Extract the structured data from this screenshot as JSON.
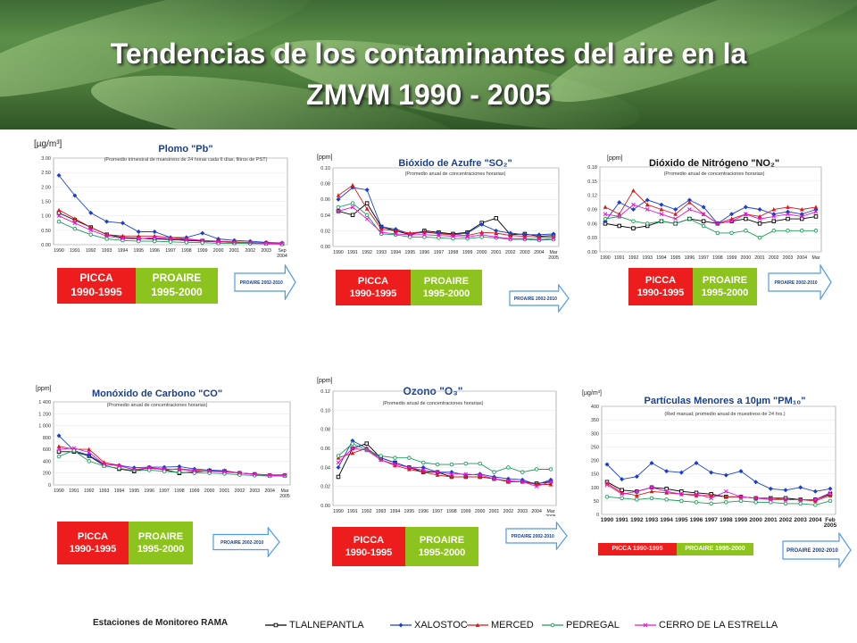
{
  "title": {
    "line1": "Tendencias de los contaminantes del aire en la",
    "line2": "ZMVM  1990 - 2005"
  },
  "colors": {
    "TLALNEPANTLA": "#000000",
    "XALOSTOC": "#1a3fcf",
    "MERCED": "#d8181a",
    "PEDREGAL": "#1c9b5a",
    "CERRO DE LA ESTRELLA": "#e317d6",
    "PICCA": "#ee1d1d",
    "PROAIRE": "#8dc31f",
    "ARROW": "#4f9be8"
  },
  "legend": {
    "title": "Estaciones de Monitoreo RAMA",
    "items": [
      "TLALNEPANTLA",
      "XALOSTOC",
      "MERCED",
      "PEDREGAL",
      "CERRO DE LA ESTRELLA"
    ]
  },
  "labels": {
    "picca": "PICCA",
    "picca_years": "1990-1995",
    "proaire": "PROAIRE",
    "proaire_years": "1995-2000",
    "arrow": "PROAIRE 2002-2010",
    "picca_short": "PICCA 1990-1995",
    "proaire_short": "PROAIRE 1995-2000"
  },
  "chart_data": [
    {
      "id": "pb",
      "type": "line",
      "title": "Plomo \"Pb\"",
      "subtitle": "(Promedio trimestral de muestreos de 24 horas cada 6 días, filtros de PST)",
      "unit": "[µg/m³]",
      "ylim": [
        0,
        3.0
      ],
      "yticks": [
        "0.00",
        "0.50",
        "1.00",
        "1.50",
        "2.00",
        "2.50",
        "3.00"
      ],
      "x": [
        "1990",
        "1991",
        "1992",
        "1993",
        "1994",
        "1995",
        "1996",
        "1997",
        "1998",
        "1999",
        "2000",
        "2001",
        "2002",
        "2003",
        "Sep 2004"
      ],
      "xticks": [
        "1990",
        "1991",
        "1992",
        "1993",
        "1994",
        "1995",
        "1996",
        "1997",
        "1998",
        "1999",
        "2000",
        "2001",
        "2002",
        "2003",
        "Sep 2004"
      ],
      "series": [
        {
          "name": "TLALNEPANTLA",
          "values": [
            1.1,
            0.85,
            0.6,
            0.35,
            0.25,
            0.22,
            0.2,
            0.18,
            0.15,
            0.12,
            0.1,
            0.08,
            0.07,
            0.05,
            0.03
          ]
        },
        {
          "name": "XALOSTOC",
          "values": [
            2.4,
            1.7,
            1.1,
            0.8,
            0.75,
            0.45,
            0.45,
            0.25,
            0.25,
            0.4,
            0.2,
            0.15,
            0.12,
            0.08,
            0.06
          ]
        },
        {
          "name": "MERCED",
          "values": [
            1.2,
            0.9,
            0.6,
            0.35,
            0.3,
            0.3,
            0.3,
            0.25,
            0.2,
            0.15,
            0.12,
            0.1,
            0.08,
            0.06,
            0.05
          ]
        },
        {
          "name": "PEDREGAL",
          "values": [
            0.8,
            0.55,
            0.35,
            0.2,
            0.15,
            0.12,
            0.12,
            0.1,
            0.08,
            0.07,
            0.05,
            0.05,
            0.04,
            0.03,
            0.02
          ]
        },
        {
          "name": "CERRO DE LA ESTRELLA",
          "values": [
            1.0,
            0.75,
            0.5,
            0.3,
            0.22,
            0.2,
            0.25,
            0.2,
            0.18,
            0.15,
            0.1,
            0.08,
            0.07,
            0.05,
            0.04
          ]
        }
      ]
    },
    {
      "id": "so2",
      "type": "line",
      "title": "Bióxido de Azufre \"SO₂\"",
      "subtitle": "(Promedio anual de concentraciones horarias)",
      "unit": "[ppm]",
      "ylim": [
        0,
        0.1
      ],
      "yticks": [
        "0.00",
        "0.02",
        "0.04",
        "0.06",
        "0.08",
        "0.10"
      ],
      "x": [
        "1990",
        "1991",
        "1992",
        "1993",
        "1994",
        "1995",
        "1996",
        "1997",
        "1998",
        "1999",
        "2000",
        "2001",
        "2002",
        "2003",
        "2004",
        "Mar 2005"
      ],
      "xticks": [
        "1990",
        "1991",
        "1992",
        "1993",
        "1994",
        "1995",
        "1996",
        "1997",
        "1998",
        "1999",
        "2000",
        "2001",
        "2002",
        "2003",
        "2004",
        "Mar 2005"
      ],
      "series": [
        {
          "name": "TLALNEPANTLA",
          "values": [
            0.045,
            0.04,
            0.055,
            0.025,
            0.02,
            0.015,
            0.02,
            0.018,
            0.016,
            0.018,
            0.03,
            0.036,
            0.015,
            0.016,
            0.013,
            0.014
          ]
        },
        {
          "name": "XALOSTOC",
          "values": [
            0.06,
            0.075,
            0.072,
            0.025,
            0.022,
            0.016,
            0.018,
            0.017,
            0.015,
            0.017,
            0.028,
            0.02,
            0.017,
            0.015,
            0.015,
            0.016
          ]
        },
        {
          "name": "MERCED",
          "values": [
            0.065,
            0.078,
            0.048,
            0.022,
            0.02,
            0.017,
            0.019,
            0.016,
            0.015,
            0.014,
            0.018,
            0.017,
            0.014,
            0.013,
            0.012,
            0.012
          ]
        },
        {
          "name": "PEDREGAL",
          "values": [
            0.05,
            0.055,
            0.04,
            0.016,
            0.015,
            0.012,
            0.012,
            0.011,
            0.01,
            0.01,
            0.012,
            0.011,
            0.009,
            0.009,
            0.008,
            0.009
          ]
        },
        {
          "name": "CERRO DE LA ESTRELLA",
          "values": [
            0.045,
            0.05,
            0.035,
            0.018,
            0.016,
            0.015,
            0.015,
            0.014,
            0.013,
            0.012,
            0.015,
            0.012,
            0.01,
            0.01,
            0.009,
            0.01
          ]
        }
      ]
    },
    {
      "id": "no2",
      "type": "line",
      "title": "Dióxido de Nitrógeno \"NO₂\"",
      "subtitle": "(Promedio anual de concentraciones horarias)",
      "unit": "[ppm]",
      "ylim": [
        0,
        0.18
      ],
      "yticks": [
        "0.00",
        "0.03",
        "0.06",
        "0.09",
        "0.12",
        "0.15",
        "0.18"
      ],
      "x": [
        "1990",
        "1991",
        "1992",
        "1993",
        "1994",
        "1995",
        "1996",
        "1997",
        "1998",
        "1999",
        "2000",
        "2001",
        "2002",
        "2003",
        "2004",
        "Mar"
      ],
      "xticks": [
        "1990",
        "1991",
        "1992",
        "1993",
        "1994",
        "1995",
        "1996",
        "1997",
        "1998",
        "1999",
        "2000",
        "2001",
        "2002",
        "2003",
        "2004",
        "Mar"
      ],
      "series": [
        {
          "name": "TLALNEPANTLA",
          "values": [
            0.06,
            0.055,
            0.05,
            0.055,
            0.065,
            0.06,
            0.07,
            0.065,
            0.06,
            0.065,
            0.07,
            0.06,
            0.065,
            0.07,
            0.07,
            0.075
          ]
        },
        {
          "name": "XALOSTOC",
          "values": [
            0.065,
            0.105,
            0.09,
            0.11,
            0.1,
            0.09,
            0.11,
            0.095,
            0.06,
            0.08,
            0.095,
            0.09,
            0.08,
            0.085,
            0.08,
            0.09
          ]
        },
        {
          "name": "MERCED",
          "values": [
            0.095,
            0.08,
            0.13,
            0.1,
            0.09,
            0.08,
            0.105,
            0.08,
            0.06,
            0.07,
            0.08,
            0.075,
            0.09,
            0.095,
            0.09,
            0.095
          ]
        },
        {
          "name": "PEDREGAL",
          "values": [
            0.07,
            0.075,
            0.065,
            0.06,
            0.065,
            0.06,
            0.07,
            0.055,
            0.04,
            0.04,
            0.045,
            0.03,
            0.045,
            0.045,
            0.045,
            0.045
          ]
        },
        {
          "name": "CERRO DE LA ESTRELLA",
          "values": [
            0.08,
            0.075,
            0.1,
            0.09,
            0.08,
            0.07,
            0.09,
            0.08,
            0.06,
            0.065,
            0.08,
            0.07,
            0.075,
            0.08,
            0.075,
            0.085
          ]
        }
      ]
    },
    {
      "id": "co",
      "type": "line",
      "title": "Monóxido de Carbono \"CO\"",
      "subtitle": "(Promedio anual de concentraciones horarias)",
      "unit": "[ppm]",
      "ylim": [
        0,
        1400
      ],
      "yticks": [
        "0",
        "200",
        "400",
        "600",
        "800",
        "1 000",
        "1 200",
        "1 400"
      ],
      "x": [
        "1990",
        "1991",
        "1992",
        "1993",
        "1994",
        "1995",
        "1996",
        "1997",
        "1998",
        "1999",
        "2000",
        "2001",
        "2002",
        "2003",
        "2004",
        "Mar 2005"
      ],
      "xticks": [
        "1990",
        "1991",
        "1992",
        "1993",
        "1994",
        "1995",
        "1996",
        "1997",
        "1998",
        "1999",
        "2000",
        "2001",
        "2002",
        "2003",
        "2004",
        "Mar 2005"
      ],
      "series": [
        {
          "name": "TLALNEPANTLA",
          "values": [
            560,
            560,
            490,
            330,
            270,
            230,
            290,
            260,
            200,
            220,
            240,
            230,
            200,
            180,
            160,
            160
          ]
        },
        {
          "name": "XALOSTOC",
          "values": [
            830,
            580,
            500,
            350,
            330,
            290,
            300,
            300,
            310,
            270,
            250,
            240,
            200,
            180,
            160,
            160
          ]
        },
        {
          "name": "MERCED",
          "values": [
            650,
            600,
            600,
            380,
            330,
            250,
            280,
            260,
            270,
            250,
            230,
            230,
            200,
            180,
            170,
            170
          ]
        },
        {
          "name": "PEDREGAL",
          "values": [
            480,
            580,
            400,
            320,
            280,
            240,
            250,
            230,
            210,
            200,
            200,
            190,
            170,
            160,
            150,
            150
          ]
        },
        {
          "name": "CERRO DE LA ESTRELLA",
          "values": [
            600,
            620,
            550,
            350,
            320,
            260,
            290,
            270,
            260,
            240,
            230,
            220,
            200,
            180,
            160,
            160
          ]
        }
      ]
    },
    {
      "id": "o3",
      "type": "line",
      "title": "Ozono \"O₃\"",
      "subtitle": "(Promedio anual de concentraciones horarias)",
      "unit": "[ppm]",
      "ylim": [
        0,
        0.12
      ],
      "yticks": [
        "0.00",
        "0.02",
        "0.04",
        "0.06",
        "0.08",
        "0.10",
        "0.12"
      ],
      "x": [
        "1990",
        "1991",
        "1992",
        "1993",
        "1994",
        "1995",
        "1996",
        "1997",
        "1998",
        "1999",
        "2000",
        "2001",
        "2002",
        "2003",
        "2004",
        "Mar 2005"
      ],
      "xticks": [
        "1990",
        "1991",
        "1992",
        "1993",
        "1994",
        "1995",
        "1996",
        "1997",
        "1998",
        "1999",
        "2000",
        "2001",
        "2002",
        "2003",
        "2004",
        "Mar 2005"
      ],
      "series": [
        {
          "name": "TLALNEPANTLA",
          "values": [
            0.03,
            0.06,
            0.065,
            0.05,
            0.045,
            0.04,
            0.035,
            0.035,
            0.03,
            0.03,
            0.03,
            0.028,
            0.025,
            0.025,
            0.023,
            0.025
          ]
        },
        {
          "name": "XALOSTOC",
          "values": [
            0.04,
            0.068,
            0.06,
            0.05,
            0.045,
            0.04,
            0.04,
            0.035,
            0.035,
            0.032,
            0.033,
            0.03,
            0.028,
            0.027,
            0.022,
            0.027
          ]
        },
        {
          "name": "MERCED",
          "values": [
            0.05,
            0.055,
            0.06,
            0.048,
            0.042,
            0.038,
            0.035,
            0.032,
            0.03,
            0.03,
            0.03,
            0.028,
            0.025,
            0.025,
            0.022,
            0.022
          ]
        },
        {
          "name": "PEDREGAL",
          "values": [
            0.052,
            0.065,
            0.058,
            0.052,
            0.05,
            0.05,
            0.045,
            0.043,
            0.043,
            0.044,
            0.044,
            0.035,
            0.04,
            0.035,
            0.038,
            0.038
          ]
        },
        {
          "name": "CERRO DE LA ESTRELLA",
          "values": [
            0.045,
            0.06,
            0.058,
            0.048,
            0.043,
            0.04,
            0.037,
            0.035,
            0.033,
            0.033,
            0.032,
            0.028,
            0.026,
            0.025,
            0.02,
            0.025
          ]
        }
      ]
    },
    {
      "id": "pm10",
      "type": "line",
      "title": "Partículas Menores a 10µm \"PM₁₀\"",
      "subtitle": "(Red manual; promedio anual de muestreos de 24 hrs.)",
      "unit": "[µg/m³]",
      "ylim": [
        0,
        400
      ],
      "yticks": [
        "0",
        "50",
        "100",
        "150",
        "200",
        "250",
        "300",
        "350",
        "400"
      ],
      "x": [
        "1990",
        "1991",
        "1992",
        "1993",
        "1994",
        "1995",
        "1996",
        "1997",
        "1998",
        "1999",
        "2000",
        "2001",
        "2002",
        "2003",
        "2004",
        "Feb 2005"
      ],
      "xticks": [
        "1990",
        "1991",
        "1992",
        "1993",
        "1994",
        "1995",
        "1996",
        "1997",
        "1998",
        "1999",
        "2000",
        "2001",
        "2002",
        "2003",
        "2004",
        "Feb 2005"
      ],
      "series": [
        {
          "name": "TLALNEPANTLA",
          "values": [
            120,
            90,
            85,
            100,
            95,
            85,
            80,
            75,
            65,
            65,
            60,
            60,
            60,
            55,
            55,
            75
          ]
        },
        {
          "name": "XALOSTOC",
          "values": [
            185,
            130,
            140,
            190,
            160,
            155,
            190,
            155,
            145,
            160,
            120,
            95,
            90,
            100,
            85,
            95
          ]
        },
        {
          "name": "MERCED",
          "values": [
            115,
            80,
            70,
            85,
            80,
            75,
            70,
            70,
            65,
            65,
            60,
            60,
            55,
            55,
            50,
            70
          ]
        },
        {
          "name": "PEDREGAL",
          "values": [
            65,
            60,
            55,
            60,
            55,
            50,
            45,
            40,
            45,
            50,
            45,
            45,
            40,
            40,
            35,
            50
          ]
        },
        {
          "name": "CERRO DE LA ESTRELLA",
          "values": [
            110,
            75,
            85,
            100,
            85,
            75,
            75,
            60,
            85,
            65,
            60,
            55,
            55,
            55,
            55,
            80
          ]
        }
      ]
    }
  ]
}
